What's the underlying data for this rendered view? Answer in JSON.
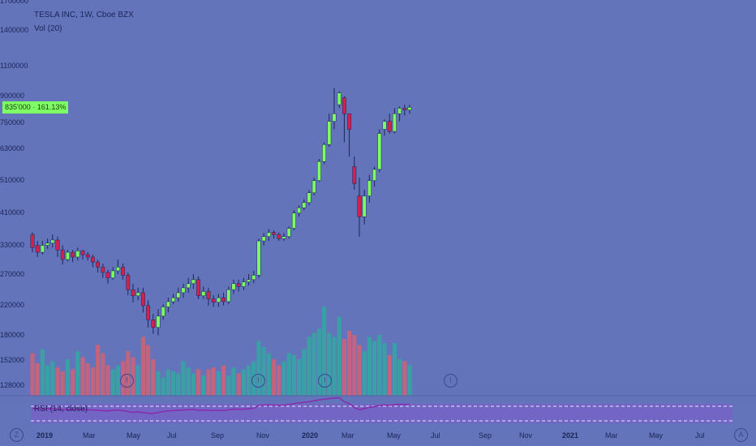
{
  "legend": {
    "symbol": "TESLA INC, 1W, Cboe BZX",
    "volume": "Vol (20)"
  },
  "price_axis": {
    "labels": [
      "1700000",
      "1400000",
      "1100000",
      "900000",
      "750000",
      "630000",
      "510000",
      "410000",
      "330000",
      "270000",
      "220000",
      "180000",
      "152000",
      "128000"
    ]
  },
  "badge": {
    "price": "835'000",
    "change": "161.13%"
  },
  "rsi": {
    "label": "RSI (14, close)"
  },
  "time_axis": {
    "labels": [
      "2019",
      "Mar",
      "May",
      "Jul",
      "Sep",
      "Nov",
      "2020",
      "Mar",
      "May",
      "Jul",
      "Sep",
      "Nov",
      "2021",
      "Mar",
      "May",
      "Jul"
    ]
  },
  "colors": {
    "background": "#6374bb",
    "up": "#7eff63",
    "down": "#d1214f",
    "volume_up": "#3aa0a6",
    "volume_down": "#c0647f",
    "rsi_line": "#8a2aad",
    "rsi_band": "#7b5ec9"
  },
  "icons": [
    "brand-logo-icon",
    "time-icon",
    "auto-scale-icon",
    "event-marker-icon"
  ],
  "chart_data": {
    "type": "candlestick",
    "interval": "weekly",
    "series": [
      {
        "name": "TESLA INC",
        "candles": [
          [
            355000,
            325000,
            360000,
            315000
          ],
          [
            330000,
            315000,
            340000,
            305000
          ],
          [
            315000,
            330000,
            340000,
            310000
          ],
          [
            330000,
            335000,
            345000,
            322000
          ],
          [
            335000,
            342000,
            355000,
            325000
          ],
          [
            342000,
            320000,
            350000,
            305000
          ],
          [
            320000,
            300000,
            330000,
            290000
          ],
          [
            300000,
            315000,
            320000,
            296000
          ],
          [
            315000,
            305000,
            320000,
            295000
          ],
          [
            305000,
            318000,
            325000,
            298000
          ],
          [
            318000,
            310000,
            320000,
            300000
          ],
          [
            310000,
            305000,
            315000,
            298000
          ],
          [
            305000,
            295000,
            310000,
            285000
          ],
          [
            295000,
            285000,
            300000,
            275000
          ],
          [
            285000,
            275000,
            292000,
            265000
          ],
          [
            275000,
            265000,
            280000,
            255000
          ],
          [
            265000,
            278000,
            285000,
            262000
          ],
          [
            278000,
            285000,
            300000,
            272000
          ],
          [
            285000,
            270000,
            292000,
            262000
          ],
          [
            270000,
            245000,
            275000,
            236000
          ],
          [
            245000,
            235000,
            255000,
            225000
          ],
          [
            235000,
            240000,
            248000,
            228000
          ],
          [
            240000,
            220000,
            248000,
            210000
          ],
          [
            220000,
            200000,
            228000,
            190000
          ],
          [
            200000,
            190000,
            208000,
            182000
          ],
          [
            190000,
            205000,
            215000,
            180000
          ],
          [
            205000,
            218000,
            222000,
            200000
          ],
          [
            218000,
            226000,
            232000,
            210000
          ],
          [
            226000,
            232000,
            238000,
            222000
          ],
          [
            232000,
            240000,
            248000,
            226000
          ],
          [
            240000,
            248000,
            255000,
            232000
          ],
          [
            248000,
            255000,
            265000,
            240000
          ],
          [
            255000,
            262000,
            272000,
            246000
          ],
          [
            262000,
            235000,
            268000,
            230000
          ],
          [
            235000,
            242000,
            250000,
            230000
          ],
          [
            242000,
            230000,
            248000,
            220000
          ],
          [
            230000,
            225000,
            236000,
            218000
          ],
          [
            225000,
            232000,
            238000,
            218000
          ],
          [
            232000,
            226000,
            240000,
            220000
          ],
          [
            226000,
            245000,
            250000,
            222000
          ],
          [
            245000,
            255000,
            262000,
            238000
          ],
          [
            255000,
            250000,
            262000,
            242000
          ],
          [
            250000,
            258000,
            265000,
            244000
          ],
          [
            258000,
            262000,
            272000,
            252000
          ],
          [
            262000,
            270000,
            278000,
            256000
          ],
          [
            270000,
            340000,
            345000,
            265000
          ],
          [
            340000,
            350000,
            358000,
            330000
          ],
          [
            350000,
            360000,
            368000,
            340000
          ],
          [
            360000,
            355000,
            365000,
            345000
          ],
          [
            355000,
            345000,
            360000,
            340000
          ],
          [
            345000,
            350000,
            358000,
            340000
          ],
          [
            350000,
            370000,
            375000,
            345000
          ],
          [
            370000,
            410000,
            418000,
            365000
          ],
          [
            410000,
            425000,
            432000,
            400000
          ],
          [
            425000,
            440000,
            450000,
            418000
          ],
          [
            440000,
            470000,
            478000,
            432000
          ],
          [
            470000,
            510000,
            520000,
            462000
          ],
          [
            510000,
            580000,
            590000,
            505000
          ],
          [
            580000,
            650000,
            660000,
            570000
          ],
          [
            650000,
            760000,
            800000,
            640000
          ],
          [
            760000,
            800000,
            950000,
            720000
          ],
          [
            850000,
            920000,
            930000,
            830000
          ],
          [
            890000,
            800000,
            900000,
            660000
          ],
          [
            800000,
            720000,
            780000,
            600000
          ],
          [
            560000,
            500000,
            600000,
            480000
          ],
          [
            460000,
            400000,
            520000,
            350000
          ],
          [
            400000,
            460000,
            480000,
            380000
          ],
          [
            460000,
            510000,
            530000,
            440000
          ],
          [
            510000,
            550000,
            560000,
            490000
          ],
          [
            550000,
            700000,
            720000,
            540000
          ],
          [
            720000,
            760000,
            770000,
            690000
          ],
          [
            760000,
            710000,
            800000,
            700000
          ],
          [
            710000,
            800000,
            830000,
            700000
          ],
          [
            800000,
            830000,
            840000,
            760000
          ],
          [
            830000,
            820000,
            850000,
            790000
          ],
          [
            820000,
            835000,
            850000,
            800000
          ]
        ]
      }
    ],
    "volume": {
      "values": [
        42,
        32,
        46,
        30,
        34,
        28,
        24,
        36,
        26,
        44,
        38,
        32,
        28,
        50,
        42,
        30,
        26,
        30,
        34,
        44,
        38,
        30,
        58,
        50,
        36,
        24,
        18,
        26,
        24,
        22,
        34,
        28,
        22,
        26,
        20,
        26,
        28,
        24,
        30,
        20,
        28,
        22,
        26,
        30,
        34,
        54,
        48,
        42,
        36,
        30,
        34,
        42,
        40,
        36,
        46,
        58,
        62,
        66,
        88,
        62,
        58,
        78,
        56,
        64,
        60,
        50,
        44,
        58,
        54,
        60,
        52,
        40,
        52,
        36,
        34,
        30
      ],
      "up_flags": [
        false,
        false,
        true,
        true,
        true,
        false,
        false,
        true,
        false,
        true,
        false,
        false,
        false,
        false,
        false,
        false,
        true,
        true,
        false,
        false,
        false,
        true,
        false,
        false,
        false,
        true,
        true,
        true,
        true,
        true,
        true,
        true,
        true,
        false,
        true,
        false,
        false,
        true,
        false,
        true,
        true,
        false,
        true,
        true,
        true,
        true,
        true,
        true,
        false,
        false,
        true,
        true,
        true,
        true,
        true,
        true,
        true,
        true,
        true,
        true,
        true,
        true,
        false,
        false,
        false,
        false,
        true,
        true,
        true,
        true,
        true,
        false,
        true,
        true,
        false,
        true
      ]
    },
    "rsi": {
      "values": [
        48,
        47,
        46,
        48,
        47,
        45,
        44,
        45,
        44,
        46,
        45,
        44,
        43,
        42,
        41,
        40,
        42,
        43,
        41,
        38,
        36,
        37,
        35,
        33,
        32,
        35,
        38,
        40,
        41,
        42,
        43,
        44,
        45,
        42,
        43,
        42,
        41,
        42,
        41,
        44,
        46,
        45,
        46,
        47,
        49,
        58,
        59,
        60,
        59,
        58,
        59,
        61,
        64,
        66,
        68,
        70,
        73,
        76,
        78,
        80,
        82,
        83,
        70,
        64,
        52,
        44,
        48,
        52,
        54,
        58,
        60,
        58,
        61,
        62,
        61,
        62
      ],
      "upper_band": 70,
      "lower_band": 30
    }
  }
}
